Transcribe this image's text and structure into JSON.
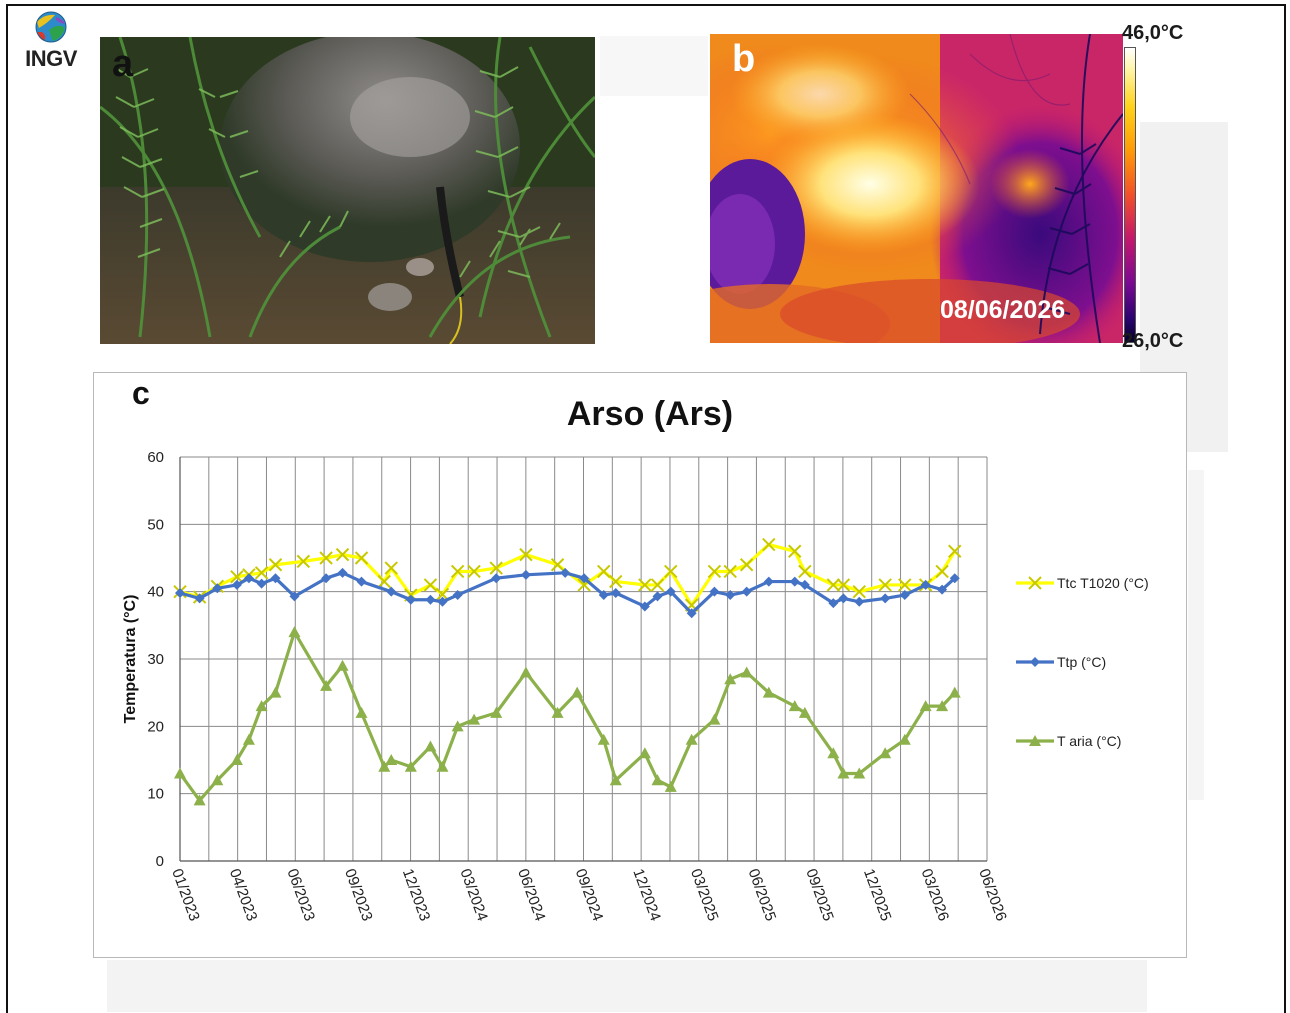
{
  "logo": {
    "text": "INGV",
    "icon": "ingv-globe-logo"
  },
  "panels": {
    "a": {
      "letter": "a",
      "content": "field-photo"
    },
    "b": {
      "letter": "b",
      "date": "08/06/2026",
      "scale_max": "46,0°C",
      "scale_min": "26,0°C"
    },
    "c": {
      "letter": "c"
    }
  },
  "chart_data": {
    "type": "line",
    "title": "Arso (Ars)",
    "ylabel": "Temperatura (°C)",
    "xlabel": "",
    "ylim": [
      0,
      60
    ],
    "yticks": [
      0,
      10,
      20,
      30,
      40,
      50,
      60
    ],
    "xlim": [
      "2023-01-01",
      "2026-06-30"
    ],
    "x_tick_labels": [
      "01/2023",
      "04/2023",
      "06/2023",
      "09/2023",
      "12/2023",
      "03/2024",
      "06/2024",
      "09/2024",
      "12/2024",
      "03/2025",
      "06/2025",
      "09/2025",
      "12/2025",
      "03/2026",
      "06/2026"
    ],
    "grid": true,
    "legend_position": "right",
    "series": [
      {
        "name": "Ttc T1020 (°C)",
        "color": "#ffff00",
        "marker": "x",
        "points": [
          [
            "2023-01-01",
            40
          ],
          [
            "2023-02-01",
            39.2
          ],
          [
            "2023-03-01",
            40.8
          ],
          [
            "2023-04-01",
            42.2
          ],
          [
            "2023-04-20",
            42.5
          ],
          [
            "2023-05-10",
            42.8
          ],
          [
            "2023-06-01",
            44
          ],
          [
            "2023-07-15",
            44.5
          ],
          [
            "2023-08-20",
            45
          ],
          [
            "2023-09-15",
            45.5
          ],
          [
            "2023-10-15",
            45
          ],
          [
            "2023-11-20",
            41.5
          ],
          [
            "2023-12-01",
            43.5
          ],
          [
            "2024-01-01",
            39.5
          ],
          [
            "2024-02-01",
            41
          ],
          [
            "2024-02-20",
            39.6
          ],
          [
            "2024-03-15",
            43
          ],
          [
            "2024-04-10",
            43
          ],
          [
            "2024-05-15",
            43.5
          ],
          [
            "2024-07-01",
            45.5
          ],
          [
            "2024-08-20",
            44
          ],
          [
            "2024-10-01",
            41
          ],
          [
            "2024-11-01",
            43
          ],
          [
            "2024-11-20",
            41.5
          ],
          [
            "2025-01-05",
            41
          ],
          [
            "2025-01-25",
            41
          ],
          [
            "2025-02-15",
            43
          ],
          [
            "2025-03-20",
            38
          ],
          [
            "2025-04-25",
            43
          ],
          [
            "2025-05-20",
            43
          ],
          [
            "2025-06-15",
            44
          ],
          [
            "2025-07-20",
            47
          ],
          [
            "2025-08-30",
            46
          ],
          [
            "2025-09-15",
            43
          ],
          [
            "2025-10-30",
            41
          ],
          [
            "2025-11-15",
            41
          ],
          [
            "2025-12-10",
            40
          ],
          [
            "2026-01-20",
            41
          ],
          [
            "2026-02-20",
            41
          ],
          [
            "2026-03-25",
            41
          ],
          [
            "2026-04-20",
            43
          ],
          [
            "2026-05-10",
            46
          ]
        ]
      },
      {
        "name": "Ttp (°C)",
        "color": "#4472c4",
        "marker": "diamond",
        "points": [
          [
            "2023-01-01",
            39.8
          ],
          [
            "2023-02-01",
            39
          ],
          [
            "2023-03-01",
            40.5
          ],
          [
            "2023-04-01",
            41
          ],
          [
            "2023-04-20",
            42
          ],
          [
            "2023-05-10",
            41.2
          ],
          [
            "2023-06-01",
            42
          ],
          [
            "2023-07-01",
            39.3
          ],
          [
            "2023-08-20",
            42
          ],
          [
            "2023-09-15",
            42.8
          ],
          [
            "2023-10-15",
            41.5
          ],
          [
            "2023-12-01",
            40
          ],
          [
            "2024-01-01",
            38.8
          ],
          [
            "2024-02-01",
            38.8
          ],
          [
            "2024-02-20",
            38.5
          ],
          [
            "2024-03-15",
            39.5
          ],
          [
            "2024-05-15",
            42
          ],
          [
            "2024-07-01",
            42.5
          ],
          [
            "2024-09-01",
            42.8
          ],
          [
            "2024-10-01",
            42
          ],
          [
            "2024-11-01",
            39.5
          ],
          [
            "2024-11-20",
            39.8
          ],
          [
            "2025-01-05",
            37.8
          ],
          [
            "2025-01-25",
            39.3
          ],
          [
            "2025-02-15",
            40
          ],
          [
            "2025-03-20",
            36.8
          ],
          [
            "2025-04-25",
            40
          ],
          [
            "2025-05-20",
            39.5
          ],
          [
            "2025-06-15",
            40
          ],
          [
            "2025-07-20",
            41.5
          ],
          [
            "2025-08-30",
            41.5
          ],
          [
            "2025-09-15",
            41
          ],
          [
            "2025-10-30",
            38.3
          ],
          [
            "2025-11-15",
            39
          ],
          [
            "2025-12-10",
            38.5
          ],
          [
            "2026-01-20",
            39
          ],
          [
            "2026-02-20",
            39.5
          ],
          [
            "2026-03-25",
            41
          ],
          [
            "2026-04-20",
            40.3
          ],
          [
            "2026-05-10",
            42
          ]
        ]
      },
      {
        "name": "T aria (°C)",
        "color": "#8cb04a",
        "marker": "triangle",
        "points": [
          [
            "2023-01-01",
            13
          ],
          [
            "2023-02-01",
            9
          ],
          [
            "2023-03-01",
            12
          ],
          [
            "2023-04-01",
            15
          ],
          [
            "2023-04-20",
            18
          ],
          [
            "2023-05-10",
            23
          ],
          [
            "2023-06-01",
            25
          ],
          [
            "2023-07-01",
            34
          ],
          [
            "2023-08-20",
            26
          ],
          [
            "2023-09-15",
            29
          ],
          [
            "2023-10-15",
            22
          ],
          [
            "2023-11-20",
            14
          ],
          [
            "2023-12-01",
            15
          ],
          [
            "2024-01-01",
            14
          ],
          [
            "2024-02-01",
            17
          ],
          [
            "2024-02-20",
            14
          ],
          [
            "2024-03-15",
            20
          ],
          [
            "2024-04-10",
            21
          ],
          [
            "2024-05-15",
            22
          ],
          [
            "2024-07-01",
            28
          ],
          [
            "2024-08-20",
            22
          ],
          [
            "2024-09-20",
            25
          ],
          [
            "2024-11-01",
            18
          ],
          [
            "2024-11-20",
            12
          ],
          [
            "2025-01-05",
            16
          ],
          [
            "2025-01-25",
            12
          ],
          [
            "2025-02-15",
            11
          ],
          [
            "2025-03-20",
            18
          ],
          [
            "2025-04-25",
            21
          ],
          [
            "2025-05-20",
            27
          ],
          [
            "2025-06-15",
            28
          ],
          [
            "2025-07-20",
            25
          ],
          [
            "2025-08-30",
            23
          ],
          [
            "2025-09-15",
            22
          ],
          [
            "2025-10-30",
            16
          ],
          [
            "2025-11-15",
            13
          ],
          [
            "2025-12-10",
            13
          ],
          [
            "2026-01-20",
            16
          ],
          [
            "2026-02-20",
            18
          ],
          [
            "2026-03-25",
            23
          ],
          [
            "2026-04-20",
            23
          ],
          [
            "2026-05-10",
            25
          ]
        ]
      }
    ]
  }
}
